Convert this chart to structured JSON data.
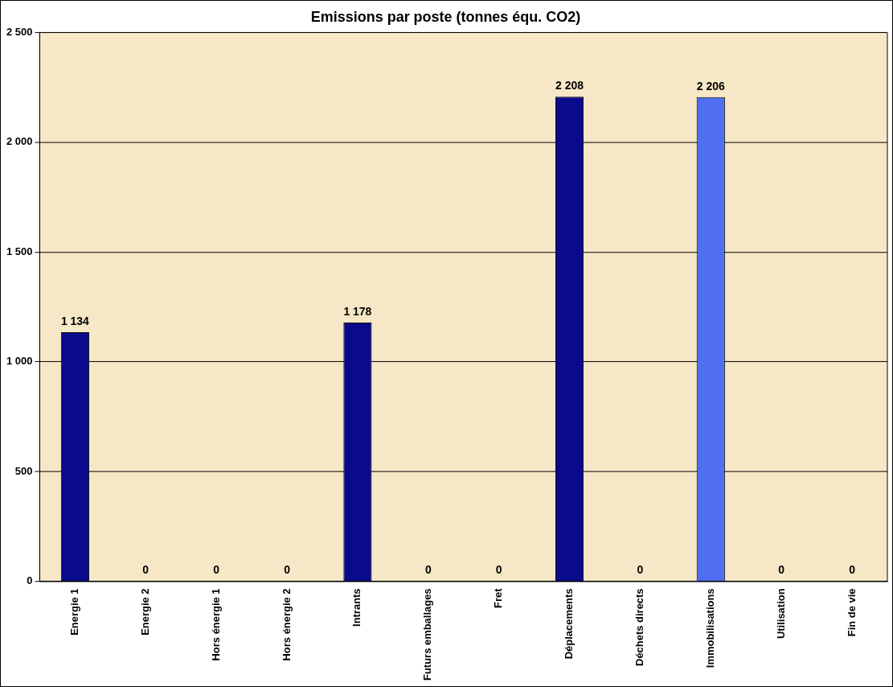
{
  "chart_data": {
    "type": "bar",
    "title": "Emissions par poste (tonnes équ. CO2)",
    "categories": [
      "Energie 1",
      "Energie 2",
      "Hors énergie 1",
      "Hors énergie 2",
      "Intrants",
      "Futurs emballages",
      "Fret",
      "Déplacements",
      "Déchets directs",
      "Immobilisations",
      "Utilisation",
      "Fin de vie"
    ],
    "values": [
      1134,
      0,
      0,
      0,
      1178,
      0,
      0,
      2208,
      0,
      2206,
      0,
      0
    ],
    "colors": [
      "#0a0a8c",
      "#0a0a8c",
      "#0a0a8c",
      "#0a0a8c",
      "#0a0a8c",
      "#0a0a8c",
      "#0a0a8c",
      "#0a0a8c",
      "#0a0a8c",
      "#4f6ff0",
      "#0a0a8c",
      "#0a0a8c"
    ],
    "value_labels": [
      "1 134",
      "0",
      "0",
      "0",
      "1 178",
      "0",
      "0",
      "2 208",
      "0",
      "2 206",
      "0",
      "0"
    ],
    "ylim": [
      0,
      2500
    ],
    "yticks": [
      {
        "value": 0,
        "label": "0"
      },
      {
        "value": 500,
        "label": "500"
      },
      {
        "value": 1000,
        "label": "1 000"
      },
      {
        "value": 1500,
        "label": "1 500"
      },
      {
        "value": 2000,
        "label": "2 000"
      },
      {
        "value": 2500,
        "label": "2 500"
      }
    ],
    "grid": "y"
  }
}
